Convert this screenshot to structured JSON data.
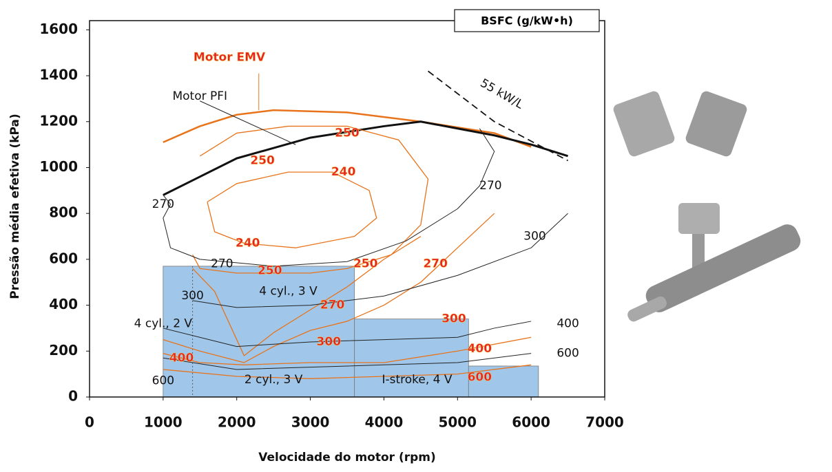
{
  "chart_data": {
    "type": "line",
    "legend_title": "BSFC (g/kW•h)",
    "xlabel": "Velocidade do motor (rpm)",
    "ylabel": "Pressão média efetiva (kPa)",
    "xlim": [
      0,
      7000
    ],
    "ylim": [
      0,
      1640
    ],
    "xticks": [
      0,
      1000,
      2000,
      3000,
      4000,
      5000,
      6000,
      7000
    ],
    "yticks": [
      0,
      200,
      400,
      600,
      800,
      1000,
      1200,
      1400,
      1600
    ],
    "regions": [
      {
        "x": [
          1000,
          3600
        ],
        "top": 570,
        "color": "#8fbde6"
      },
      {
        "x": [
          3600,
          5150
        ],
        "top": 340,
        "color": "#8fbde6"
      },
      {
        "x": [
          5150,
          6100
        ],
        "top": 135,
        "color": "#8fbde6"
      }
    ],
    "series": [
      {
        "color": "#e8731a",
        "width": 2.5,
        "x": [
          1000,
          1500,
          2000,
          2500,
          3500,
          4500,
          5500,
          6000
        ],
        "values": [
          1110,
          1180,
          1230,
          1250,
          1240,
          1200,
          1150,
          1090
        ]
      },
      {
        "color": "#111111",
        "width": 3,
        "x": [
          1000,
          1500,
          2000,
          3000,
          4000,
          4500,
          5000,
          5500,
          6000,
          6500
        ],
        "values": [
          880,
          960,
          1040,
          1130,
          1180,
          1200,
          1170,
          1140,
          1100,
          1050
        ]
      },
      {
        "color": "#111111",
        "width": 1.8,
        "dash": true,
        "x": [
          4600,
          5500,
          6500
        ],
        "values": [
          1420,
          1200,
          1030
        ]
      },
      {
        "color": "#e8731a",
        "width": 1.3,
        "x": [
          1600,
          2000,
          2700,
          3300,
          3800,
          3900,
          3600,
          2800,
          2100,
          1700,
          1600
        ],
        "values": [
          850,
          930,
          980,
          980,
          900,
          780,
          700,
          650,
          670,
          720,
          850
        ]
      },
      {
        "color": "#e8731a",
        "width": 1.3,
        "x": [
          1500,
          2000,
          2700,
          3500,
          4200,
          4600,
          4500,
          4100,
          3500,
          3000,
          2000,
          1500,
          1400
        ],
        "values": [
          1050,
          1150,
          1180,
          1180,
          1120,
          950,
          750,
          620,
          560,
          540,
          540,
          560,
          620
        ]
      },
      {
        "color": "#e8731a",
        "width": 1.3,
        "x": [
          1400,
          1700,
          2100,
          2500,
          3000,
          3500,
          4000,
          4500
        ],
        "values": [
          560,
          460,
          180,
          280,
          380,
          480,
          600,
          700
        ]
      },
      {
        "color": "#e8731a",
        "width": 1.3,
        "x": [
          1000,
          1500,
          2100,
          2500,
          3000,
          3500,
          4000,
          4500,
          5000,
          5500
        ],
        "values": [
          250,
          200,
          150,
          220,
          290,
          330,
          400,
          500,
          650,
          800
        ]
      },
      {
        "color": "#e8731a",
        "width": 1.3,
        "x": [
          1000,
          1500,
          2100,
          3000,
          4000,
          5000,
          6000
        ],
        "values": [
          190,
          150,
          140,
          150,
          150,
          200,
          260
        ]
      },
      {
        "color": "#e8731a",
        "width": 1.3,
        "x": [
          1000,
          2000,
          3000,
          4000,
          5000,
          6000
        ],
        "values": [
          120,
          90,
          80,
          90,
          100,
          140
        ]
      },
      {
        "color": "#222222",
        "width": 1,
        "x": [
          1000,
          1100,
          1000,
          1100,
          1500,
          2500,
          3500,
          4300,
          5000,
          5300,
          5500,
          5300
        ],
        "values": [
          880,
          840,
          780,
          650,
          600,
          570,
          590,
          680,
          820,
          920,
          1070,
          1170
        ]
      },
      {
        "color": "#222222",
        "width": 1,
        "x": [
          1400,
          2000,
          3000,
          4000,
          5000,
          6000,
          6500
        ],
        "values": [
          420,
          390,
          400,
          440,
          530,
          650,
          800
        ]
      },
      {
        "color": "#222222",
        "width": 1,
        "x": [
          1000,
          2000,
          3000,
          4000,
          5000,
          5500,
          6000
        ],
        "values": [
          300,
          220,
          240,
          250,
          260,
          300,
          330
        ]
      },
      {
        "color": "#222222",
        "width": 1,
        "x": [
          1000,
          2000,
          3000,
          4000,
          5000,
          6000
        ],
        "values": [
          170,
          120,
          130,
          140,
          150,
          190
        ]
      },
      {
        "color": "#e8731a",
        "width": 1,
        "x": [
          2300,
          2300
        ],
        "values": [
          1410,
          1250
        ]
      },
      {
        "color": "#222222",
        "width": 1,
        "x": [
          1500,
          2800
        ],
        "values": [
          1290,
          1100
        ]
      }
    ],
    "annotations": [
      {
        "text": "Motor EMV",
        "x": 1900,
        "y": 1480,
        "color": "#e5202a"
      },
      {
        "text": "Motor PFI",
        "x": 1500,
        "y": 1310,
        "color": "#111111"
      },
      {
        "text": "55 kW/L",
        "x": 5600,
        "y": 1320,
        "color": "#111111"
      },
      {
        "text": "250",
        "x": 2350,
        "y": 1030,
        "color": "#e5202a"
      },
      {
        "text": "250",
        "x": 3500,
        "y": 1150,
        "color": "#e5202a"
      },
      {
        "text": "240",
        "x": 3450,
        "y": 980,
        "color": "#e5202a"
      },
      {
        "text": "240",
        "x": 2150,
        "y": 670,
        "color": "#e5202a"
      },
      {
        "text": "250",
        "x": 2450,
        "y": 550,
        "color": "#e5202a"
      },
      {
        "text": "250",
        "x": 3750,
        "y": 580,
        "color": "#e5202a"
      },
      {
        "text": "270",
        "x": 4700,
        "y": 580,
        "color": "#e5202a"
      },
      {
        "text": "270",
        "x": 3300,
        "y": 400,
        "color": "#e5202a"
      },
      {
        "text": "300",
        "x": 4950,
        "y": 340,
        "color": "#e5202a"
      },
      {
        "text": "300",
        "x": 3250,
        "y": 240,
        "color": "#e5202a"
      },
      {
        "text": "400",
        "x": 1250,
        "y": 170,
        "color": "#e5202a"
      },
      {
        "text": "400",
        "x": 5300,
        "y": 210,
        "color": "#e5202a"
      },
      {
        "text": "600",
        "x": 5300,
        "y": 85,
        "color": "#e5202a"
      },
      {
        "text": "270",
        "x": 1000,
        "y": 840,
        "color": "#111111"
      },
      {
        "text": "270",
        "x": 1800,
        "y": 580,
        "color": "#111111"
      },
      {
        "text": "270",
        "x": 5450,
        "y": 920,
        "color": "#111111"
      },
      {
        "text": "300",
        "x": 6050,
        "y": 700,
        "color": "#111111"
      },
      {
        "text": "300",
        "x": 1400,
        "y": 440,
        "color": "#111111"
      },
      {
        "text": "400",
        "x": 6500,
        "y": 320,
        "color": "#111111"
      },
      {
        "text": "600",
        "x": 6500,
        "y": 190,
        "color": "#111111"
      },
      {
        "text": "600",
        "x": 1000,
        "y": 70,
        "color": "#111111"
      },
      {
        "text": "4 cyl., 3 V",
        "x": 2700,
        "y": 460,
        "color": "#111111"
      },
      {
        "text": "4 cyl., 2 V",
        "x": 1000,
        "y": 320,
        "color": "#111111"
      },
      {
        "text": "2 cyl., 3 V",
        "x": 2500,
        "y": 75,
        "color": "#111111"
      },
      {
        "text": "I-stroke, 4 V",
        "x": 4450,
        "y": 75,
        "color": "#111111"
      }
    ]
  }
}
